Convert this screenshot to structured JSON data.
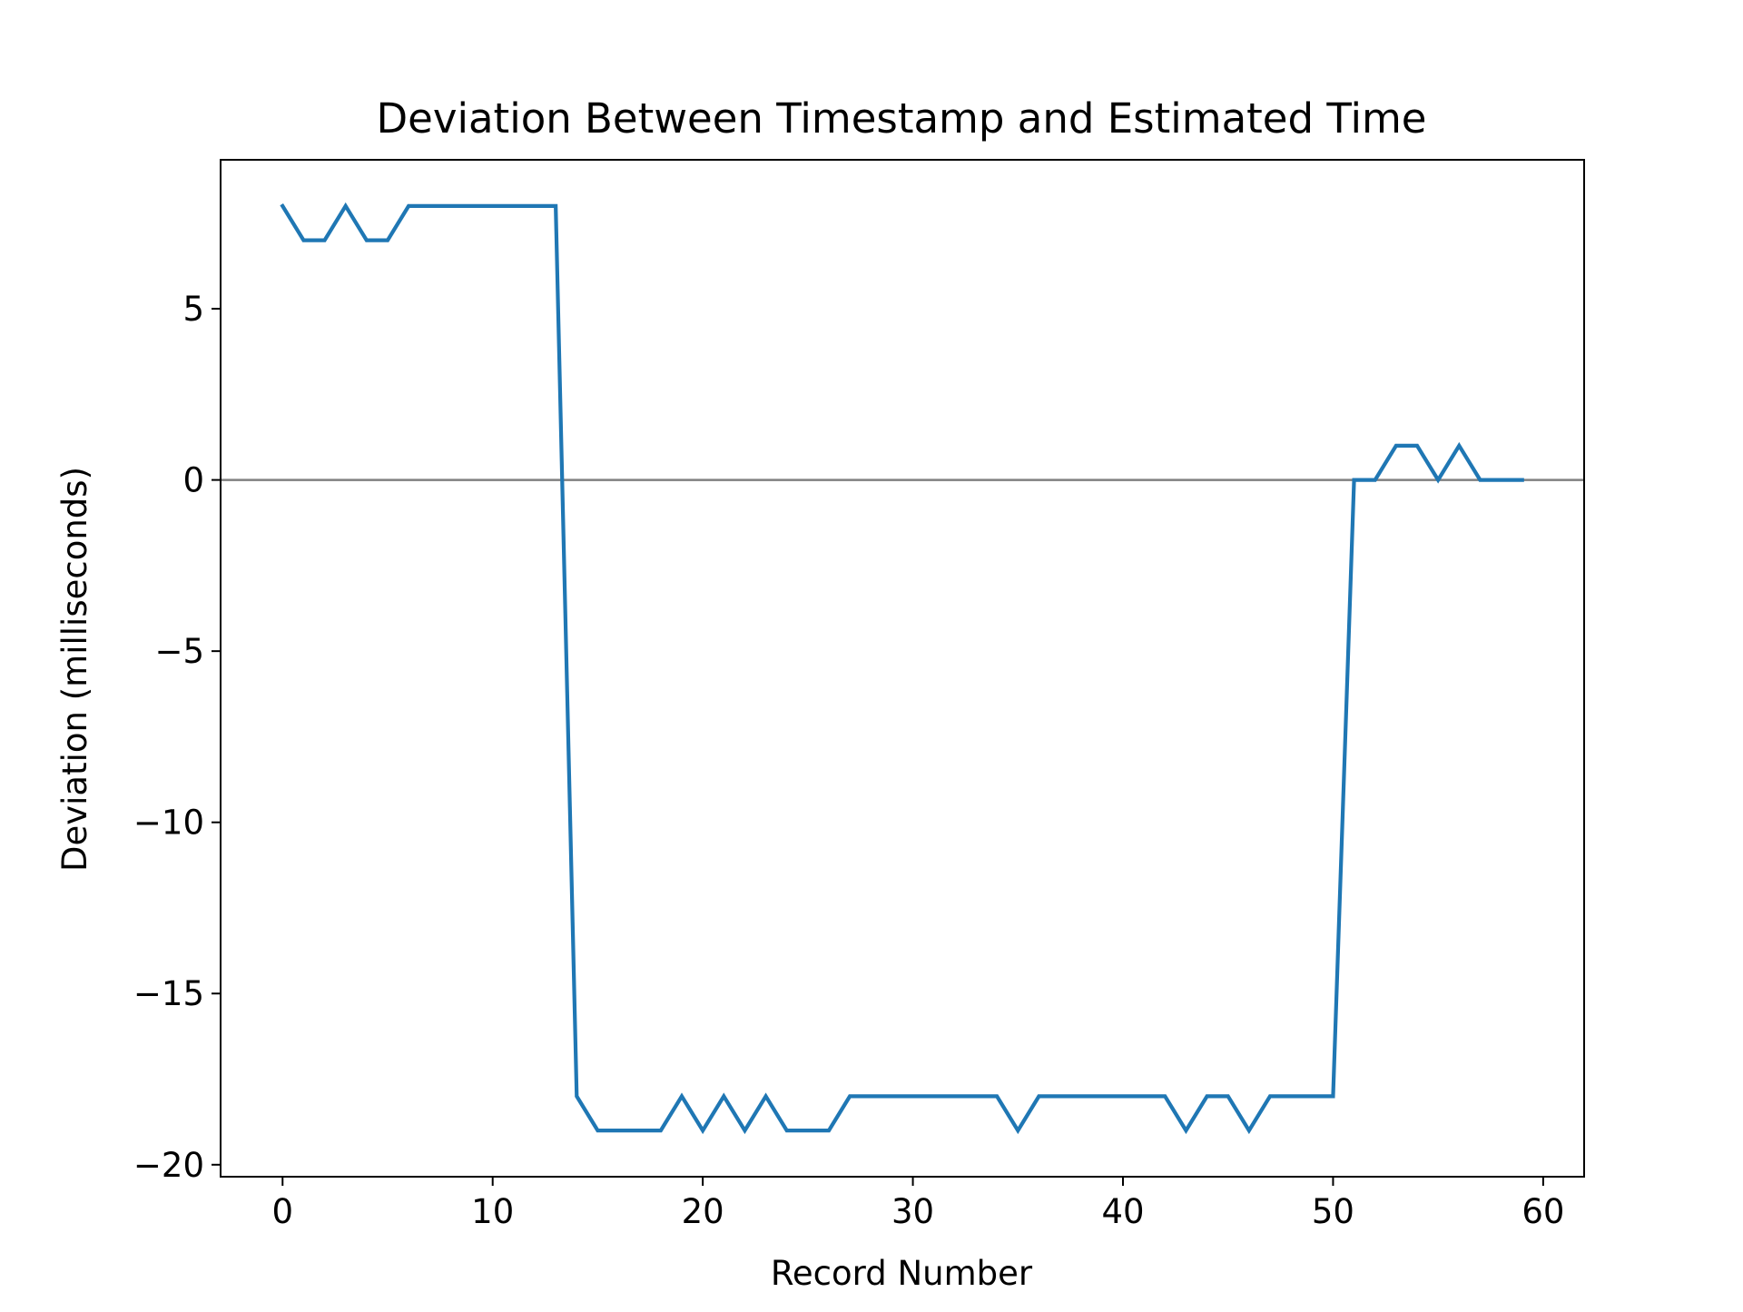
{
  "chart_data": {
    "type": "line",
    "title": "Deviation Between Timestamp and Estimated Time",
    "xlabel": "Record Number",
    "ylabel": "Deviation (milliseconds)",
    "xlim": [
      -2.95,
      61.95
    ],
    "ylim": [
      -20.35,
      9.35
    ],
    "x_ticks": [
      0,
      10,
      20,
      30,
      40,
      50,
      60
    ],
    "y_ticks": [
      -20,
      -15,
      -10,
      -5,
      0,
      5
    ],
    "x_tick_labels": [
      "0",
      "10",
      "20",
      "30",
      "40",
      "50",
      "60"
    ],
    "y_tick_labels": [
      "−20",
      "−15",
      "−10",
      "−5",
      "0",
      "5"
    ],
    "grid": false,
    "reference_line": {
      "y": 0,
      "color": "#808080"
    },
    "series": [
      {
        "color": "#1f77b4",
        "x": [
          0,
          1,
          2,
          3,
          4,
          5,
          6,
          7,
          8,
          9,
          10,
          11,
          12,
          13,
          14,
          15,
          16,
          17,
          18,
          19,
          20,
          21,
          22,
          23,
          24,
          25,
          26,
          27,
          28,
          29,
          30,
          31,
          32,
          33,
          34,
          35,
          36,
          37,
          38,
          39,
          40,
          41,
          42,
          43,
          44,
          45,
          46,
          47,
          48,
          49,
          50,
          51,
          52,
          53,
          54,
          55,
          56,
          57,
          58,
          59
        ],
        "values": [
          8,
          7,
          7,
          8,
          7,
          7,
          8,
          8,
          8,
          8,
          8,
          8,
          8,
          8,
          -18,
          -19,
          -19,
          -19,
          -19,
          -18,
          -19,
          -18,
          -19,
          -18,
          -19,
          -19,
          -19,
          -18,
          -18,
          -18,
          -18,
          -18,
          -18,
          -18,
          -18,
          -19,
          -18,
          -18,
          -18,
          -18,
          -18,
          -18,
          -18,
          -19,
          -18,
          -18,
          -19,
          -18,
          -18,
          -18,
          -18,
          0,
          0,
          1,
          1,
          0,
          1,
          0,
          0,
          0
        ]
      }
    ]
  }
}
